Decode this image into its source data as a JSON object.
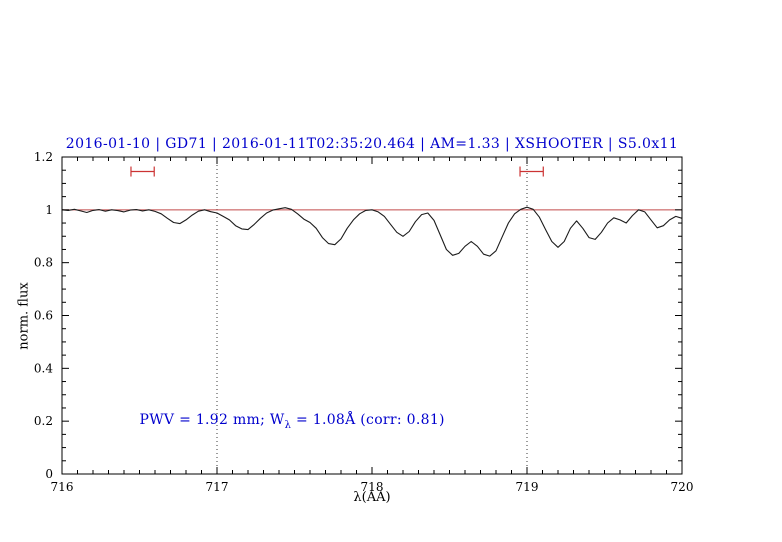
{
  "page": {
    "background": "#ffffff"
  },
  "chart_data": {
    "type": "line",
    "title": "2016-01-10 | GD71 | 2016-01-11T02:35:20.464 | AM=1.33 | XSHOOTER | S5.0x11",
    "title_color": "#0000cd",
    "xlabel": "λ(AA)",
    "ylabel": "norm. flux",
    "xlim": [
      716,
      720
    ],
    "ylim": [
      0,
      1.2
    ],
    "x_major_ticks": [
      716,
      717,
      718,
      719,
      720
    ],
    "x_major_labels": [
      "716",
      "717",
      "718",
      "719",
      "720"
    ],
    "x_minor_step": 0.1,
    "y_major_ticks": [
      0,
      0.2,
      0.4,
      0.6,
      0.8,
      1,
      1.2
    ],
    "y_major_labels": [
      "0",
      "0.2",
      "0.4",
      "0.6",
      "0.8",
      "1",
      "1.2"
    ],
    "y_minor_step": 0.05,
    "grid": false,
    "legend": "none",
    "axis_color": "#000000",
    "reference_line": {
      "y": 1.0,
      "color": "#c24a4a"
    },
    "vlines": {
      "color": "#3a3a3a",
      "style": "dotted",
      "x": [
        717,
        719
      ]
    },
    "range_markers": {
      "color": "#cc3333",
      "y": 1.145,
      "items": [
        {
          "x_center": 716.52,
          "half_width": 0.075
        },
        {
          "x_center": 719.03,
          "half_width": 0.075
        }
      ]
    },
    "annotation": {
      "color": "#0000cd",
      "x": 716.5,
      "y": 0.2,
      "prefix": "PWV  =  1.92 mm; W",
      "subscript": "λ",
      "suffix": "  =  1.08Å  (corr: 0.81)"
    },
    "series": [
      {
        "name": "spectrum",
        "color": "#1c1c1c",
        "x": [
          716.0,
          716.04,
          716.08,
          716.12,
          716.16,
          716.2,
          716.24,
          716.28,
          716.32,
          716.36,
          716.4,
          716.44,
          716.48,
          716.52,
          716.56,
          716.6,
          716.64,
          716.68,
          716.72,
          716.76,
          716.8,
          716.84,
          716.88,
          716.92,
          716.96,
          717.0,
          717.04,
          717.08,
          717.12,
          717.16,
          717.2,
          717.24,
          717.28,
          717.32,
          717.36,
          717.4,
          717.44,
          717.48,
          717.52,
          717.56,
          717.6,
          717.64,
          717.68,
          717.72,
          717.76,
          717.8,
          717.84,
          717.88,
          717.92,
          717.96,
          718.0,
          718.04,
          718.08,
          718.12,
          718.16,
          718.2,
          718.24,
          718.28,
          718.32,
          718.36,
          718.4,
          718.44,
          718.48,
          718.52,
          718.56,
          718.6,
          718.64,
          718.68,
          718.72,
          718.76,
          718.8,
          718.84,
          718.88,
          718.92,
          718.96,
          719.0,
          719.04,
          719.08,
          719.12,
          719.16,
          719.2,
          719.24,
          719.28,
          719.32,
          719.36,
          719.4,
          719.44,
          719.48,
          719.52,
          719.56,
          719.6,
          719.64,
          719.68,
          719.72,
          719.76,
          719.8,
          719.84,
          719.88,
          719.92,
          719.96,
          720.0
        ],
        "y": [
          1.0,
          0.998,
          1.002,
          0.996,
          0.99,
          0.998,
          1.001,
          0.995,
          1.0,
          0.997,
          0.992,
          0.999,
          1.001,
          0.996,
          1.0,
          0.994,
          0.985,
          0.968,
          0.952,
          0.948,
          0.962,
          0.98,
          0.995,
          1.0,
          0.993,
          0.988,
          0.975,
          0.962,
          0.94,
          0.928,
          0.925,
          0.945,
          0.968,
          0.988,
          0.999,
          1.004,
          1.008,
          1.002,
          0.985,
          0.965,
          0.952,
          0.93,
          0.895,
          0.872,
          0.868,
          0.89,
          0.93,
          0.962,
          0.985,
          0.998,
          1.0,
          0.992,
          0.975,
          0.945,
          0.915,
          0.9,
          0.918,
          0.955,
          0.982,
          0.988,
          0.96,
          0.905,
          0.85,
          0.828,
          0.835,
          0.862,
          0.88,
          0.862,
          0.832,
          0.825,
          0.845,
          0.898,
          0.95,
          0.985,
          1.002,
          1.01,
          1.002,
          0.972,
          0.925,
          0.88,
          0.858,
          0.88,
          0.93,
          0.958,
          0.93,
          0.895,
          0.888,
          0.915,
          0.95,
          0.97,
          0.962,
          0.95,
          0.978,
          1.0,
          0.992,
          0.962,
          0.932,
          0.94,
          0.962,
          0.975,
          0.968
        ]
      }
    ]
  }
}
